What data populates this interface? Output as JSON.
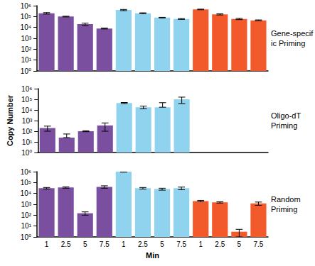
{
  "chart_data": [
    {
      "type": "bar",
      "title": "Gene-specific Priming",
      "log": "y",
      "grid": false,
      "tick_labels": "y",
      "categories": [
        "1",
        "2.5",
        "5",
        "7.5",
        "1",
        "2.5",
        "5",
        "7.5",
        "1",
        "2.5",
        "5",
        "7.5"
      ],
      "values": [
        200000,
        100000,
        20000,
        8000,
        400000,
        200000,
        80000,
        60000,
        450000,
        160000,
        60000,
        45000
      ],
      "errors": [
        30000,
        8000,
        5000,
        800,
        50000,
        20000,
        5000,
        5000,
        30000,
        20000,
        8000,
        4000
      ],
      "colors": [
        "#7b4fa0",
        "#7b4fa0",
        "#7b4fa0",
        "#7b4fa0",
        "#8fd3ee",
        "#8fd3ee",
        "#8fd3ee",
        "#8fd3ee",
        "#f2592b",
        "#f2592b",
        "#f2592b",
        "#f2592b"
      ],
      "ylim": [
        1,
        1000000
      ],
      "yticks": [
        {
          "value": 1,
          "label": "10⁰"
        },
        {
          "value": 10,
          "label": "10¹"
        },
        {
          "value": 100,
          "label": "10²"
        },
        {
          "value": 1000,
          "label": "10³"
        },
        {
          "value": 10000,
          "label": "10⁴"
        },
        {
          "value": 100000,
          "label": "10⁵"
        },
        {
          "value": 1000000,
          "label": "10⁶"
        }
      ]
    },
    {
      "type": "bar",
      "title": "Oligo-dT Priming",
      "y_label": "Copy Number",
      "log": "y",
      "grid": false,
      "tick_labels": "y",
      "categories": [
        "1",
        "2.5",
        "5",
        "7.5",
        "1",
        "2.5",
        "5",
        "7.5",
        "1",
        "2.5",
        "5",
        "7.5"
      ],
      "values": [
        200,
        25,
        100,
        350,
        45000,
        18000,
        18000,
        100000,
        null,
        null,
        null,
        null
      ],
      "errors": [
        100,
        30,
        10,
        250,
        5000,
        5000,
        30000,
        60000,
        null,
        null,
        null,
        null
      ],
      "colors": [
        "#7b4fa0",
        "#7b4fa0",
        "#7b4fa0",
        "#7b4fa0",
        "#8fd3ee",
        "#8fd3ee",
        "#8fd3ee",
        "#8fd3ee",
        "#f2592b",
        "#f2592b",
        "#f2592b",
        "#f2592b"
      ],
      "ylim": [
        1,
        1000000
      ],
      "yticks": [
        {
          "value": 1,
          "label": "10⁰"
        },
        {
          "value": 10,
          "label": "10¹"
        },
        {
          "value": 100,
          "label": "10²"
        },
        {
          "value": 1000,
          "label": "10³"
        },
        {
          "value": 10000,
          "label": "10⁴"
        },
        {
          "value": 100000,
          "label": "10⁵"
        },
        {
          "value": 1000000,
          "label": "10⁶"
        }
      ]
    },
    {
      "type": "bar",
      "title": "Random Priming",
      "x_label": "Min",
      "log": "y",
      "grid": false,
      "categories": [
        "1",
        "2.5",
        "5",
        "7.5",
        "1",
        "2.5",
        "5",
        "7.5",
        "1",
        "2.5",
        "5",
        "7.5"
      ],
      "values": [
        30000,
        35000,
        150,
        40000,
        1000000,
        30000,
        25000,
        30000,
        2000,
        1500,
        3,
        1200
      ],
      "errors": [
        5000,
        5000,
        50,
        10000,
        100000,
        5000,
        5000,
        8000,
        300,
        200,
        2,
        400
      ],
      "colors": [
        "#7b4fa0",
        "#7b4fa0",
        "#7b4fa0",
        "#7b4fa0",
        "#8fd3ee",
        "#8fd3ee",
        "#8fd3ee",
        "#8fd3ee",
        "#f2592b",
        "#f2592b",
        "#f2592b",
        "#f2592b"
      ],
      "ylim": [
        1,
        1000000
      ],
      "yticks": [
        {
          "value": 1,
          "label": "10⁰"
        },
        {
          "value": 10,
          "label": "10¹"
        },
        {
          "value": 100,
          "label": "10²"
        },
        {
          "value": 1000,
          "label": "10³"
        },
        {
          "value": 10000,
          "label": "10⁴"
        },
        {
          "value": 100000,
          "label": "10⁵"
        },
        {
          "value": 1000000,
          "label": "10⁶"
        }
      ]
    }
  ]
}
